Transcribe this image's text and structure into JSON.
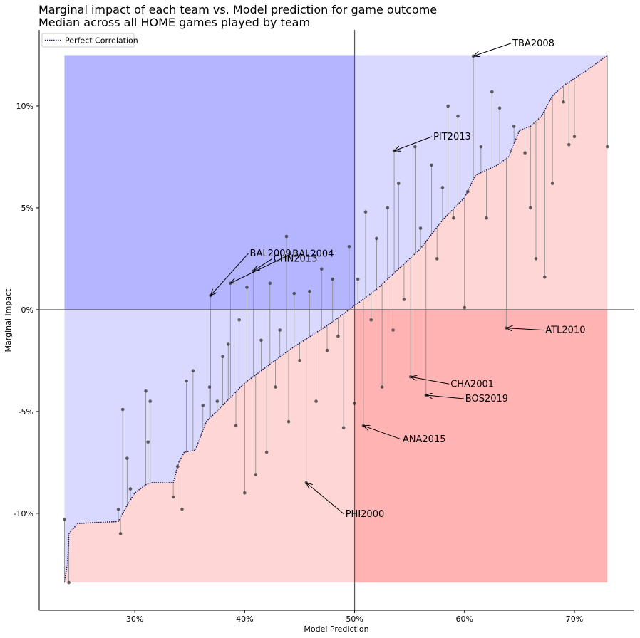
{
  "chart_data": {
    "type": "scatter",
    "title": "Marginal impact of each team vs. Model prediction for game outcome",
    "subtitle": "Median across all HOME games played by team",
    "x_label": "Model Prediction",
    "y_label": "Marginal Impact",
    "xlim": [
      21.3,
      75.45
    ],
    "ylim": [
      -14.76,
      13.74
    ],
    "xticks": [
      {
        "value": 30,
        "label": "30%"
      },
      {
        "value": 40,
        "label": "40%"
      },
      {
        "value": 50,
        "label": "50%"
      },
      {
        "value": 60,
        "label": "60%"
      },
      {
        "value": 70,
        "label": "70%"
      }
    ],
    "yticks": [
      {
        "value": -10,
        "label": "-10%"
      },
      {
        "value": -5,
        "label": "-5%"
      },
      {
        "value": 0,
        "label": "0%"
      },
      {
        "value": 5,
        "label": "5%"
      },
      {
        "value": 10,
        "label": "10%"
      }
    ],
    "legend": "upper left",
    "quadrant_x": [
      23.6,
      50,
      73
    ],
    "quadrant_y": [
      -13.4,
      0,
      12.5
    ],
    "colors": {
      "upper": "#d9d9ff",
      "upper_left": "#b5b5ff",
      "below": "#ffd6d6",
      "lower_right": "#ffb3b3",
      "points": "#333333",
      "curve": "#1a1a4d"
    },
    "curve": {
      "name": "Perfect Correlation",
      "x": [
        23.6,
        23.9,
        24.0,
        24.8,
        28.5,
        29.2,
        30.0,
        31.0,
        31.5,
        33.5,
        34.0,
        34.5,
        35.5,
        36.5,
        38.0,
        40.0,
        42.0,
        44.0,
        46.0,
        48.0,
        50.0,
        52.0,
        54.0,
        56.0,
        58.0,
        60.0,
        61.0,
        63.0,
        64.0,
        65.0,
        66.0,
        67.0,
        68.0,
        69.0,
        71.0,
        73.0
      ],
      "y": [
        -13.4,
        -12.3,
        -11.0,
        -10.5,
        -10.4,
        -9.7,
        -9.0,
        -8.6,
        -8.5,
        -8.5,
        -7.5,
        -7.0,
        -6.9,
        -5.5,
        -4.7,
        -3.6,
        -2.8,
        -2.0,
        -1.3,
        -0.6,
        0.2,
        1.0,
        2.0,
        3.0,
        4.4,
        5.5,
        6.6,
        7.1,
        7.5,
        8.8,
        9.0,
        9.5,
        10.5,
        11.0,
        11.7,
        12.5
      ]
    },
    "points": {
      "x": [
        23.6,
        24.0,
        28.5,
        28.7,
        28.9,
        29.3,
        29.6,
        31.0,
        31.2,
        31.4,
        33.5,
        33.9,
        34.3,
        34.7,
        35.3,
        36.2,
        36.8,
        36.9,
        37.5,
        38.0,
        38.5,
        38.7,
        39.2,
        39.5,
        40.0,
        40.2,
        40.8,
        41.0,
        41.5,
        42.0,
        42.3,
        42.8,
        43.2,
        43.8,
        44.0,
        44.5,
        45.0,
        45.6,
        45.9,
        46.5,
        47.0,
        47.5,
        48.0,
        48.5,
        49.0,
        49.5,
        50.0,
        50.3,
        50.8,
        51.0,
        51.5,
        52.0,
        52.5,
        53.0,
        53.5,
        53.6,
        54.0,
        54.5,
        55.1,
        55.5,
        56.0,
        56.5,
        57.0,
        57.5,
        58.0,
        58.5,
        59.0,
        59.4,
        60.0,
        60.3,
        60.8,
        61.5,
        62.0,
        62.5,
        63.2,
        63.8,
        64.5,
        65.5,
        66.0,
        66.5,
        67.3,
        68.0,
        69.0,
        69.5,
        70.0,
        73.0
      ],
      "y": [
        -10.3,
        -13.4,
        -9.8,
        -11.0,
        -4.9,
        -7.3,
        -8.8,
        -4.0,
        -6.5,
        -4.5,
        -9.2,
        -7.7,
        -9.8,
        -3.5,
        -3.0,
        -4.7,
        -3.8,
        0.7,
        -4.5,
        -2.3,
        -1.7,
        1.3,
        -5.7,
        -0.5,
        -9.0,
        1.1,
        1.9,
        -8.1,
        -1.5,
        -7.0,
        1.3,
        -3.8,
        -1.0,
        3.6,
        -5.5,
        0.8,
        -2.5,
        -8.5,
        0.9,
        -4.5,
        2.0,
        -2.0,
        1.5,
        -1.3,
        -5.8,
        3.1,
        -4.6,
        1.5,
        -5.7,
        4.8,
        -0.5,
        3.5,
        -3.8,
        5.0,
        -1.0,
        7.8,
        6.2,
        0.5,
        -3.3,
        8.0,
        4.0,
        -4.2,
        7.1,
        2.5,
        6.0,
        10.0,
        4.5,
        9.5,
        0.1,
        5.8,
        12.45,
        8.0,
        4.5,
        10.7,
        9.9,
        -0.9,
        9.0,
        7.7,
        5.0,
        2.5,
        1.6,
        6.2,
        10.2,
        8.1,
        8.5,
        8.0
      ]
    },
    "annotations": [
      {
        "label": "TBA2008",
        "x": 60.8,
        "y": 12.45,
        "color": "#000080"
      },
      {
        "label": "PIT2013",
        "x": 53.6,
        "y": 7.8,
        "color": "#000080"
      },
      {
        "label": "BAL2009",
        "x": 36.9,
        "y": 0.7,
        "color": "#000080"
      },
      {
        "label": "BAL2004",
        "x": 38.7,
        "y": 1.3,
        "color": "#000080"
      },
      {
        "label": "CHN2013",
        "x": 40.8,
        "y": 1.9,
        "color": "#000080"
      },
      {
        "label": "ATL2010",
        "x": 63.8,
        "y": -0.9,
        "color": "#ff0000"
      },
      {
        "label": "CHA2001",
        "x": 55.1,
        "y": -3.3,
        "color": "#ff0000"
      },
      {
        "label": "BOS2019",
        "x": 56.5,
        "y": -4.2,
        "color": "#ff0000"
      },
      {
        "label": "ANA2015",
        "x": 50.8,
        "y": -5.7,
        "color": "#ff0000"
      },
      {
        "label": "PHI2000",
        "x": 45.6,
        "y": -8.5,
        "color": "#ff0000"
      }
    ]
  }
}
